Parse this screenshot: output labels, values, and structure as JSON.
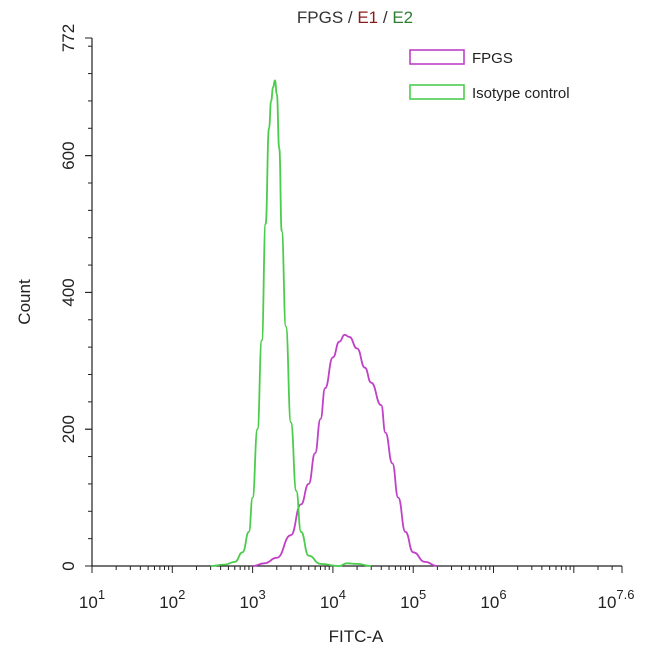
{
  "chart_data": {
    "type": "area",
    "title_parts": [
      {
        "text": "FPGS",
        "color": "#333333"
      },
      {
        "text": " / ",
        "color": "#333333"
      },
      {
        "text": "E1",
        "color": "#8b1a1a"
      },
      {
        "text": " / ",
        "color": "#333333"
      },
      {
        "text": "E2",
        "color": "#2e7d32"
      }
    ],
    "xlabel": "FITC-A",
    "ylabel": "Count",
    "x_scale": "log10",
    "xlim": [
      10,
      39810717
    ],
    "ylim": [
      0,
      772
    ],
    "x_ticks": [
      {
        "base": "10",
        "exp": "1",
        "value": 10
      },
      {
        "base": "10",
        "exp": "2",
        "value": 100
      },
      {
        "base": "10",
        "exp": "3",
        "value": 1000
      },
      {
        "base": "10",
        "exp": "4",
        "value": 10000
      },
      {
        "base": "10",
        "exp": "5",
        "value": 100000
      },
      {
        "base": "10",
        "exp": "6",
        "value": 1000000
      },
      {
        "base": "10",
        "exp": "7.6",
        "value": 39810717
      }
    ],
    "y_ticks": [
      {
        "label": "0",
        "value": 0
      },
      {
        "label": "200",
        "value": 200
      },
      {
        "label": "400",
        "value": 400
      },
      {
        "label": "600",
        "value": 600
      },
      {
        "label": "772",
        "value": 772
      }
    ],
    "legend_position": "top-right",
    "grid": false,
    "series": [
      {
        "name": "FPGS",
        "color": "#c040c8",
        "points": [
          [
            1000,
            0
          ],
          [
            1400,
            4
          ],
          [
            2000,
            12
          ],
          [
            3000,
            45
          ],
          [
            4000,
            90
          ],
          [
            5000,
            120
          ],
          [
            6000,
            165
          ],
          [
            7000,
            215
          ],
          [
            8000,
            260
          ],
          [
            10000,
            305
          ],
          [
            12000,
            328
          ],
          [
            14000,
            338
          ],
          [
            16000,
            335
          ],
          [
            20000,
            318
          ],
          [
            25000,
            290
          ],
          [
            30000,
            268
          ],
          [
            40000,
            235
          ],
          [
            45000,
            195
          ],
          [
            55000,
            150
          ],
          [
            65000,
            100
          ],
          [
            80000,
            50
          ],
          [
            100000,
            20
          ],
          [
            140000,
            6
          ],
          [
            200000,
            0
          ]
        ]
      },
      {
        "name": "Isotype control",
        "color": "#4ccc4c",
        "points": [
          [
            300,
            0
          ],
          [
            450,
            2
          ],
          [
            600,
            6
          ],
          [
            750,
            20
          ],
          [
            900,
            50
          ],
          [
            1000,
            100
          ],
          [
            1150,
            200
          ],
          [
            1300,
            330
          ],
          [
            1450,
            500
          ],
          [
            1600,
            640
          ],
          [
            1700,
            680
          ],
          [
            1800,
            700
          ],
          [
            1900,
            710
          ],
          [
            2000,
            690
          ],
          [
            2150,
            610
          ],
          [
            2300,
            490
          ],
          [
            2600,
            350
          ],
          [
            3000,
            210
          ],
          [
            3500,
            110
          ],
          [
            4000,
            50
          ],
          [
            5000,
            15
          ],
          [
            7000,
            3
          ],
          [
            12000,
            0
          ],
          [
            15000,
            4
          ],
          [
            20000,
            3
          ],
          [
            30000,
            0
          ]
        ]
      }
    ]
  }
}
